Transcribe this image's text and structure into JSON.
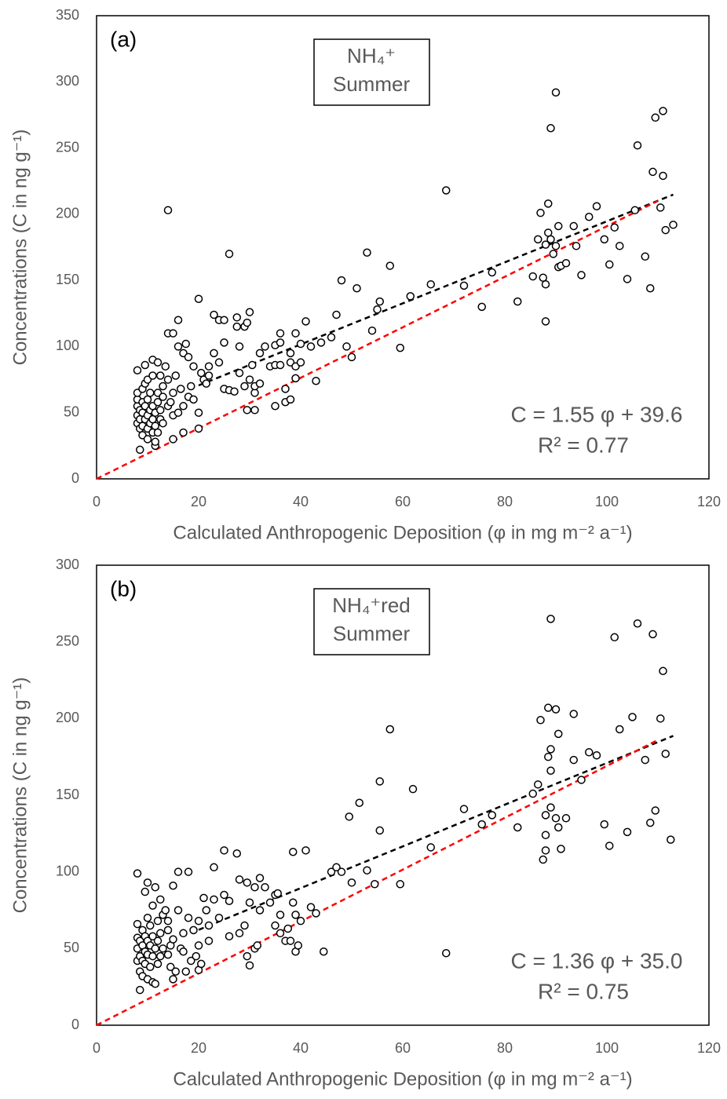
{
  "chart_data": [
    {
      "type": "scatter",
      "panel_label": "(a)",
      "title": [
        "NH₄⁺",
        "Summer"
      ],
      "equation": "C = 1.55 φ + 39.6",
      "r_squared": "R² = 0.77",
      "xlabel": "Calculated Anthropogenic Deposition (φ in mg m⁻² a⁻¹)",
      "ylabel": "Concentrations (C in ng g⁻¹)",
      "xlim": [
        0,
        120
      ],
      "ylim": [
        0,
        350
      ],
      "xticks": [
        0,
        20,
        40,
        60,
        80,
        100,
        120
      ],
      "yticks": [
        0,
        50,
        100,
        150,
        200,
        250,
        300,
        350
      ],
      "marker_color": "#000000",
      "trend_lines": [
        {
          "color": "#000000",
          "x": [
            20,
            113
          ],
          "y": [
            70.6,
            214.8
          ]
        },
        {
          "color": "#ff0000",
          "x": [
            0,
            110
          ],
          "y": [
            0,
            210
          ]
        }
      ],
      "x": [
        8,
        8,
        8,
        8,
        8,
        8,
        8.5,
        8.5,
        8.5,
        8.5,
        9,
        9,
        9,
        9,
        9,
        9.5,
        9.5,
        9.5,
        9.5,
        10,
        10,
        10,
        10,
        10,
        10.5,
        10.5,
        10.5,
        11,
        11,
        11,
        11,
        11,
        11.5,
        11.5,
        11.5,
        11.5,
        12,
        12,
        12,
        12,
        12.5,
        12.5,
        12.5,
        13,
        13,
        13,
        13.5,
        14,
        14,
        14,
        14,
        14.5,
        15,
        15,
        15,
        15,
        15.5,
        16,
        16,
        16,
        16.5,
        17,
        17,
        17,
        17.5,
        18,
        18,
        18.5,
        19,
        19,
        20,
        20,
        20,
        20.5,
        21,
        21.5,
        22,
        22,
        23,
        23,
        24,
        24,
        25,
        25,
        25,
        26,
        26,
        27,
        27.5,
        27.5,
        28,
        28,
        29,
        29,
        29.5,
        29.5,
        30,
        30,
        30.5,
        31,
        31,
        31,
        32,
        32,
        33,
        34,
        35,
        35,
        35,
        36,
        36,
        36,
        37,
        37,
        38,
        38,
        38,
        39,
        39,
        39,
        40,
        40,
        41,
        42,
        43,
        44,
        46,
        47,
        48,
        49,
        50,
        51,
        53,
        54,
        55,
        55.5,
        57.5,
        59.5,
        61.5,
        65.5,
        68.5,
        72,
        75.5,
        77.5,
        82.5,
        85.5,
        86.5,
        87,
        87.5,
        88,
        88,
        88,
        88.5,
        88.5,
        89,
        89,
        89.5,
        90,
        90,
        90.5,
        90.5,
        91,
        92,
        93.5,
        94,
        95,
        96.5,
        98,
        99.5,
        100.5,
        101.5,
        102.5,
        104,
        105.5,
        106,
        107.5,
        108.5,
        109,
        109.5,
        110.5,
        111,
        111,
        111.5,
        113
      ],
      "y": [
        42,
        48,
        55,
        60,
        65,
        82,
        22,
        38,
        45,
        52,
        33,
        40,
        50,
        58,
        68,
        45,
        55,
        72,
        86,
        30,
        38,
        48,
        60,
        75,
        42,
        52,
        65,
        35,
        45,
        55,
        78,
        90,
        25,
        28,
        40,
        50,
        35,
        58,
        65,
        88,
        45,
        52,
        78,
        42,
        62,
        70,
        85,
        55,
        75,
        110,
        203,
        58,
        48,
        65,
        110,
        30,
        78,
        100,
        120,
        50,
        68,
        35,
        95,
        55,
        102,
        62,
        92,
        70,
        60,
        85,
        38,
        50,
        136,
        80,
        75,
        72,
        85,
        78,
        124,
        95,
        88,
        120,
        68,
        103,
        120,
        170,
        67,
        66,
        122,
        115,
        100,
        80,
        115,
        70,
        118,
        52,
        126,
        75,
        86,
        65,
        52,
        70,
        72,
        95,
        100,
        85,
        101,
        55,
        86,
        103,
        110,
        86,
        68,
        58,
        60,
        95,
        88,
        76,
        110,
        85,
        88,
        102,
        119,
        100,
        74,
        103,
        107,
        124,
        150,
        100,
        92,
        144,
        171,
        112,
        128,
        134,
        161,
        99,
        138,
        147,
        218,
        146,
        130,
        156,
        134,
        153,
        181,
        201,
        152,
        119,
        177,
        147,
        208,
        186,
        181,
        265,
        170,
        292,
        176,
        160,
        191,
        161,
        163,
        191,
        176,
        154,
        198,
        206,
        181,
        162,
        190,
        176,
        151,
        203,
        252,
        168,
        144,
        232,
        273,
        205,
        278,
        229,
        188,
        192
      ]
    },
    {
      "type": "scatter",
      "panel_label": "(b)",
      "title": [
        "NH₄⁺red",
        "Summer"
      ],
      "equation": "C = 1.36 φ + 35.0",
      "r_squared": "R² = 0.75",
      "xlabel": "Calculated Anthropogenic Deposition (φ in mg m⁻² a⁻¹)",
      "ylabel": "Concentrations (C in ng g⁻¹)",
      "xlim": [
        0,
        120
      ],
      "ylim": [
        0,
        300
      ],
      "xticks": [
        0,
        20,
        40,
        60,
        80,
        100,
        120
      ],
      "yticks": [
        0,
        50,
        100,
        150,
        200,
        250,
        300
      ],
      "marker_color": "#000000",
      "trend_lines": [
        {
          "color": "#000000",
          "x": [
            20,
            113
          ],
          "y": [
            62.2,
            188.7
          ]
        },
        {
          "color": "#ff0000",
          "x": [
            0,
            110
          ],
          "y": [
            0,
            186
          ]
        }
      ],
      "x": [
        8,
        8,
        8,
        8,
        8,
        8.5,
        8.5,
        8.5,
        8.5,
        9,
        9,
        9,
        9,
        9.5,
        9.5,
        9.5,
        9.5,
        10,
        10,
        10,
        10,
        10,
        10.5,
        10.5,
        10.5,
        11,
        11,
        11,
        11,
        11.5,
        11.5,
        11.5,
        12,
        12,
        12,
        12.5,
        12.5,
        12.5,
        13,
        13,
        13.5,
        14,
        14,
        14,
        14.5,
        14.5,
        15,
        15,
        15,
        15.5,
        16,
        16,
        16.5,
        17,
        17,
        17.5,
        18,
        18,
        18.5,
        19,
        19.5,
        20,
        20,
        20,
        20.5,
        21,
        21.5,
        22,
        22,
        23,
        23,
        24,
        25,
        25,
        26,
        26,
        27.5,
        28,
        28,
        29,
        29.5,
        29.5,
        30,
        30,
        31,
        31,
        31.5,
        32,
        32,
        33,
        34,
        35,
        35,
        35.5,
        36,
        36,
        37,
        37.5,
        38,
        38.5,
        38.5,
        39,
        39,
        39.5,
        40,
        41,
        42,
        43,
        44.5,
        46,
        47,
        48,
        49.5,
        50,
        51.5,
        53,
        54.5,
        55.5,
        55.5,
        57.5,
        59.5,
        62,
        65.5,
        68.5,
        72,
        75.5,
        77.5,
        82.5,
        85.5,
        86.5,
        87,
        87.5,
        88,
        88,
        88,
        88.5,
        88.5,
        89,
        89,
        89,
        89,
        90,
        90,
        90.5,
        90.5,
        91,
        92,
        93.5,
        93.5,
        95,
        96.5,
        98,
        99.5,
        100.5,
        101.5,
        102.5,
        104,
        105,
        106,
        107.5,
        108.5,
        109,
        109.5,
        110.5,
        111,
        111.5,
        112.5
      ],
      "y": [
        42,
        50,
        57,
        66,
        99,
        23,
        35,
        45,
        55,
        32,
        42,
        52,
        62,
        40,
        48,
        58,
        87,
        30,
        46,
        55,
        70,
        93,
        38,
        52,
        65,
        28,
        45,
        58,
        78,
        27,
        50,
        90,
        40,
        55,
        68,
        45,
        60,
        82,
        50,
        72,
        75,
        46,
        62,
        68,
        38,
        52,
        30,
        56,
        91,
        35,
        100,
        75,
        50,
        48,
        60,
        35,
        70,
        100,
        42,
        62,
        45,
        36,
        68,
        52,
        40,
        83,
        75,
        65,
        55,
        103,
        82,
        70,
        114,
        85,
        81,
        58,
        112,
        60,
        95,
        65,
        93,
        45,
        39,
        80,
        50,
        90,
        52,
        96,
        75,
        90,
        80,
        85,
        65,
        86,
        60,
        72,
        55,
        63,
        55,
        80,
        113,
        48,
        72,
        52,
        68,
        114,
        77,
        73,
        48,
        100,
        103,
        100,
        136,
        93,
        145,
        101,
        92,
        127,
        159,
        193,
        92,
        154,
        116,
        47,
        141,
        131,
        137,
        129,
        151,
        157,
        199,
        108,
        114,
        124,
        137,
        175,
        207,
        166,
        180,
        265,
        142,
        206,
        135,
        190,
        129,
        115,
        135,
        173,
        203,
        160,
        178,
        176,
        131,
        117,
        253,
        193,
        126,
        201,
        262,
        173,
        132,
        255,
        140,
        200,
        231,
        177,
        121
      ]
    }
  ]
}
